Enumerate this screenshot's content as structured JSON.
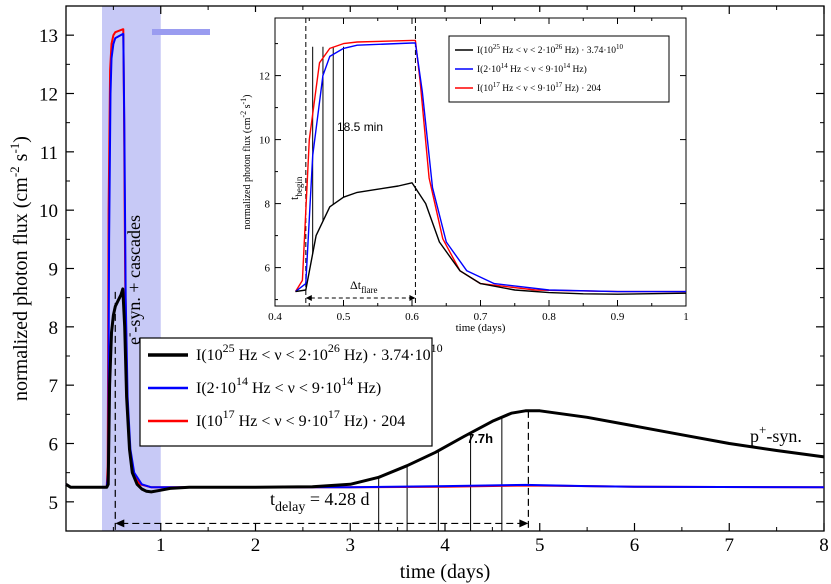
{
  "chart_data": [
    {
      "type": "line",
      "xlabel": "time (days)",
      "ylabel": "normalized photon flux (cm",
      "ylabel_sup1": "-2",
      "ylabel_sep": " s",
      "ylabel_sup2": "-1",
      "ylabel_end": ")",
      "xlim": [
        0,
        8
      ],
      "ylim": [
        4.5,
        13.5
      ],
      "x_ticks": [
        1,
        2,
        3,
        4,
        5,
        6,
        7,
        8
      ],
      "y_ticks": [
        5,
        6,
        7,
        8,
        9,
        10,
        11,
        12,
        13
      ],
      "shaded_region": [
        0.38,
        1.0
      ],
      "shade_color": "#c7c9f6",
      "series": [
        {
          "name_pre": "I(10",
          "name_sup1": "25",
          "name_mid": " Hz < ν < 2·10",
          "name_sup2": "26",
          "name_post": " Hz) · 3.74·10",
          "name_sup3": "10",
          "color": "#000000",
          "width": 3,
          "points": [
            [
              0,
              5.3
            ],
            [
              0.05,
              5.25
            ],
            [
              0.1,
              5.25
            ],
            [
              0.2,
              5.25
            ],
            [
              0.3,
              5.25
            ],
            [
              0.43,
              5.25
            ],
            [
              0.445,
              5.3
            ],
            [
              0.46,
              7.0
            ],
            [
              0.48,
              7.9
            ],
            [
              0.5,
              8.2
            ],
            [
              0.52,
              8.35
            ],
            [
              0.55,
              8.45
            ],
            [
              0.58,
              8.55
            ],
            [
              0.6,
              8.65
            ],
            [
              0.62,
              8.0
            ],
            [
              0.64,
              6.8
            ],
            [
              0.67,
              5.9
            ],
            [
              0.7,
              5.5
            ],
            [
              0.75,
              5.3
            ],
            [
              0.8,
              5.22
            ],
            [
              0.85,
              5.18
            ],
            [
              0.9,
              5.17
            ],
            [
              1.0,
              5.2
            ],
            [
              1.1,
              5.23
            ],
            [
              1.3,
              5.25
            ],
            [
              2,
              5.25
            ],
            [
              2.6,
              5.26
            ],
            [
              3.0,
              5.3
            ],
            [
              3.3,
              5.42
            ],
            [
              3.6,
              5.62
            ],
            [
              3.9,
              5.85
            ],
            [
              4.2,
              6.12
            ],
            [
              4.5,
              6.38
            ],
            [
              4.7,
              6.52
            ],
            [
              4.85,
              6.56
            ],
            [
              5.0,
              6.56
            ],
            [
              5.5,
              6.45
            ],
            [
              6.0,
              6.3
            ],
            [
              6.5,
              6.15
            ],
            [
              7.0,
              6.0
            ],
            [
              7.5,
              5.88
            ],
            [
              8.0,
              5.77
            ]
          ]
        },
        {
          "name_pre": "I(2·10",
          "name_sup1": "14",
          "name_mid": " Hz < ν < 9·10",
          "name_sup2": "14",
          "name_post": " Hz)",
          "name_sup3": "",
          "color": "#0000ff",
          "width": 2,
          "points": [
            [
              0,
              5.3
            ],
            [
              0.05,
              5.25
            ],
            [
              0.43,
              5.25
            ],
            [
              0.445,
              5.5
            ],
            [
              0.455,
              9.5
            ],
            [
              0.47,
              12.0
            ],
            [
              0.48,
              12.6
            ],
            [
              0.5,
              12.85
            ],
            [
              0.52,
              12.95
            ],
            [
              0.6,
              13.02
            ],
            [
              0.605,
              13.02
            ],
            [
              0.615,
              11.5
            ],
            [
              0.63,
              8.5
            ],
            [
              0.65,
              6.8
            ],
            [
              0.68,
              5.9
            ],
            [
              0.72,
              5.5
            ],
            [
              0.8,
              5.3
            ],
            [
              0.9,
              5.25
            ],
            [
              1.0,
              5.25
            ],
            [
              2,
              5.25
            ],
            [
              3,
              5.25
            ],
            [
              4,
              5.27
            ],
            [
              4.85,
              5.29
            ],
            [
              5.5,
              5.27
            ],
            [
              6,
              5.26
            ],
            [
              8,
              5.25
            ]
          ]
        },
        {
          "name_pre": "I(10",
          "name_sup1": "17",
          "name_mid": " Hz < ν < 9·10",
          "name_sup2": "17",
          "name_post": " Hz) · 204",
          "name_sup3": "",
          "color": "#ff0000",
          "width": 2,
          "points": [
            [
              0,
              5.3
            ],
            [
              0.05,
              5.25
            ],
            [
              0.43,
              5.25
            ],
            [
              0.44,
              5.6
            ],
            [
              0.45,
              10.0
            ],
            [
              0.465,
              12.4
            ],
            [
              0.48,
              12.85
            ],
            [
              0.5,
              13.0
            ],
            [
              0.52,
              13.05
            ],
            [
              0.6,
              13.1
            ],
            [
              0.605,
              13.1
            ],
            [
              0.612,
              11.8
            ],
            [
              0.625,
              8.8
            ],
            [
              0.645,
              6.9
            ],
            [
              0.67,
              5.9
            ],
            [
              0.7,
              5.5
            ],
            [
              0.78,
              5.3
            ],
            [
              0.9,
              5.25
            ],
            [
              1.0,
              5.25
            ],
            [
              2,
              5.25
            ],
            [
              3,
              5.25
            ],
            [
              4,
              5.26
            ],
            [
              4.85,
              5.28
            ],
            [
              5.5,
              5.27
            ],
            [
              6,
              5.26
            ],
            [
              8,
              5.25
            ]
          ]
        }
      ],
      "vlines_delay": [
        3.3,
        3.6,
        3.93,
        4.27,
        4.6
      ],
      "peak_x": 4.88,
      "peak_y": 6.56,
      "delay_arrow_start": 0.52,
      "annotations": {
        "band_label_pre": "e",
        "band_label_sup": "-",
        "band_label_post": "-syn. + cascades",
        "psyn_pre": "p",
        "psyn_sup": "+",
        "psyn_post": "-syn.",
        "tdelay_pre": "t",
        "tdelay_sub": "delay",
        "tdelay_post": " = 4.28 d",
        "interval_label": "7.7h"
      }
    },
    {
      "type": "line",
      "inset": true,
      "xlabel": "time (days)",
      "ylabel": "normalized photon flux (cm",
      "ylabel_sup1": "-2",
      "ylabel_sep": " s",
      "ylabel_sup2": "-1",
      "ylabel_end": ")",
      "xlim": [
        0.4,
        1.0
      ],
      "ylim": [
        4.8,
        13.8
      ],
      "x_ticks": [
        0.4,
        0.5,
        0.6,
        0.7,
        0.8,
        0.9,
        1
      ],
      "x_tick_labels": [
        "0.4",
        "0.5",
        "0.6",
        "0.7",
        "0.8",
        "0.9",
        "1"
      ],
      "y_ticks": [
        6,
        8,
        10,
        12
      ],
      "vlines_rise": [
        0.455,
        0.47,
        0.485,
        0.5
      ],
      "t_begin_x": 0.445,
      "t_end_x": 0.605,
      "annotations": {
        "rise_label": "18.5 min",
        "tbegin_pre": "t",
        "tbegin_sub": "begin",
        "dtflare_pre": "Δt",
        "dtflare_sub": "flare"
      },
      "legend": [
        {
          "pre": "I(10",
          "sup1": "25",
          "mid": " Hz < ν < 2·10",
          "sup2": "26",
          "post": " Hz) · 3.74·10",
          "sup3": "10",
          "color": "#000000"
        },
        {
          "pre": "I(2·10",
          "sup1": "14",
          "mid": " Hz < ν < 9·10",
          "sup2": "14",
          "post": " Hz)",
          "sup3": "",
          "color": "#0000ff"
        },
        {
          "pre": "I(10",
          "sup1": "17",
          "mid": " Hz < ν < 9·10",
          "sup2": "17",
          "post": " Hz) · 204",
          "sup3": "",
          "color": "#ff0000"
        }
      ]
    }
  ],
  "arrow_color": "#9a9cf0"
}
